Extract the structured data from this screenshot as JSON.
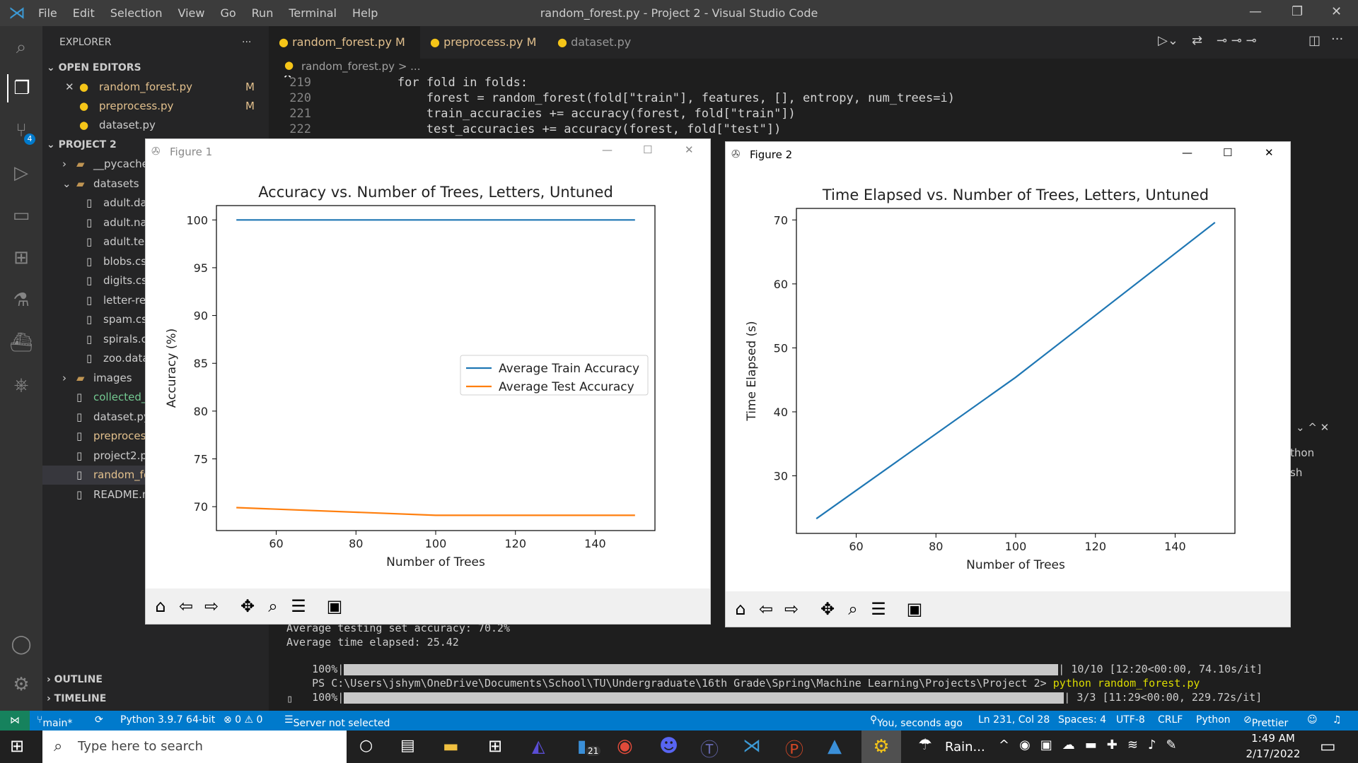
{
  "menu": [
    "File",
    "Edit",
    "Selection",
    "View",
    "Go",
    "Run",
    "Terminal",
    "Help"
  ],
  "window_title": "random_forest.py - Project 2 - Visual Studio Code",
  "explorer": {
    "title": "EXPLORER",
    "open_editors_label": "OPEN EDITORS",
    "open_editors": [
      {
        "name": "random_forest.py",
        "badge": "M"
      },
      {
        "name": "preprocess.py",
        "badge": "M"
      },
      {
        "name": "dataset.py",
        "badge": ""
      }
    ],
    "project_label": "PROJECT 2",
    "tree": [
      "__pycache_",
      "datasets",
      "adult.dat",
      "adult.nan",
      "adult.test",
      "blobs.csv",
      "digits.csv",
      "letter-rec",
      "spam.csv",
      "spirals.cs",
      "zoo.data",
      "images",
      "collected_",
      "dataset.py",
      "preproces",
      "project2.p",
      "random_fo",
      "README.m"
    ],
    "outline_label": "OUTLINE",
    "timeline_label": "TIMELINE",
    "scm_badge": "4"
  },
  "tabs": [
    {
      "label": "random_forest.py",
      "badge": "M"
    },
    {
      "label": "preprocess.py",
      "badge": "M"
    },
    {
      "label": "dataset.py",
      "badge": ""
    }
  ],
  "breadcrumb": "random_forest.py > ...",
  "code_lines": [
    {
      "num": "219",
      "text": "        for fold in folds:"
    },
    {
      "num": "220",
      "text": "            forest = random_forest(fold[\"train\"], features, [], entropy, num_trees=i)"
    },
    {
      "num": "221",
      "text": "            train_accuracies += accuracy(forest, fold[\"train\"])"
    },
    {
      "num": "222",
      "text": "            test_accuracies += accuracy(forest, fold[\"test\"])"
    }
  ],
  "terminal_lines": [
    "Average testing set accuracy: 70.2%",
    "Average time elapsed: 25.42",
    "100%|",
    "PS C:\\Users\\jshym\\OneDrive\\Documents\\School\\TU\\Undergraduate\\16th Grade\\Spring\\Machine Learning\\Projects\\Project 2> ",
    "100%|"
  ],
  "terminal_progress1": "| 10/10 [12:20<00:00, 74.10s/it]",
  "terminal_cmd": "python random_forest.py",
  "terminal_progress2": "| 3/3 [11:29<00:00, 229.72s/it]",
  "terminal_side": [
    "thon",
    "sh"
  ],
  "status": {
    "branch": "main*",
    "python": "Python 3.9.7 64-bit",
    "problems": "⊗ 0 ⚠ 0",
    "server": "Server not selected",
    "blame": "You, seconds ago",
    "position": "Ln 231, Col 28",
    "spaces": "Spaces: 4",
    "encoding": "UTF-8",
    "eol": "CRLF",
    "language": "Python",
    "prettier": "Prettier"
  },
  "taskbar": {
    "search_placeholder": "Type here to search",
    "weather": "Rain...",
    "time": "1:49 AM",
    "date": "2/17/2022",
    "badge": "21"
  },
  "figure1": {
    "window_title": "Figure 1"
  },
  "figure2": {
    "window_title": "Figure 2"
  },
  "chart_data": [
    {
      "type": "line",
      "title": "Accuracy vs. Number of Trees, Letters, Untuned",
      "xlabel": "Number of Trees",
      "ylabel": "Accuracy (%)",
      "xlim": [
        45,
        155
      ],
      "ylim": [
        67.5,
        101.5
      ],
      "xticks": [
        60,
        80,
        100,
        120,
        140
      ],
      "yticks": [
        70,
        75,
        80,
        85,
        90,
        95,
        100
      ],
      "legend": "center-right",
      "x": [
        50,
        100,
        150
      ],
      "series": [
        {
          "name": "Average Train Accuracy",
          "color": "#1f77b4",
          "values": [
            100,
            100,
            100
          ]
        },
        {
          "name": "Average Test Accuracy",
          "color": "#ff7f0e",
          "values": [
            69.9,
            69.1,
            69.1
          ]
        }
      ]
    },
    {
      "type": "line",
      "title": "Time Elapsed vs. Number of Trees, Letters, Untuned",
      "xlabel": "Number of Trees",
      "ylabel": "Time Elapsed (s)",
      "xlim": [
        45,
        155
      ],
      "ylim": [
        21,
        71.8
      ],
      "xticks": [
        60,
        80,
        100,
        120,
        140
      ],
      "yticks": [
        30,
        40,
        50,
        60,
        70
      ],
      "x": [
        50,
        100,
        150
      ],
      "series": [
        {
          "color": "#1f77b4",
          "values": [
            23.3,
            45.4,
            69.6
          ]
        }
      ]
    }
  ],
  "colors": {
    "accent": "#007acc",
    "sidebar": "#252526",
    "editor": "#1e1e1e"
  }
}
